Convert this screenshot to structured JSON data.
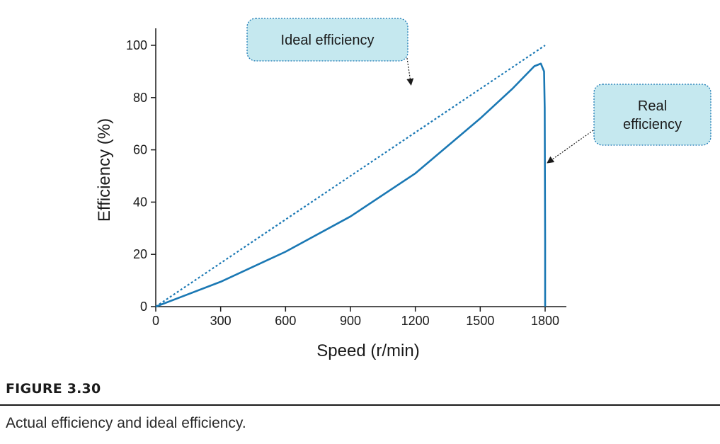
{
  "chart_data": {
    "type": "line",
    "title": "",
    "xlabel": "Speed (r/min)",
    "ylabel": "Efficiency (%)",
    "xlim": [
      0,
      1800
    ],
    "ylim": [
      0,
      100
    ],
    "xticks": [
      0,
      300,
      600,
      900,
      1200,
      1500,
      1800
    ],
    "yticks": [
      0,
      20,
      40,
      60,
      80,
      100
    ],
    "grid": false,
    "series": [
      {
        "name": "Ideal efficiency",
        "style": "dotted",
        "color": "#1a78b4",
        "x": [
          0,
          1800
        ],
        "y": [
          0,
          100
        ]
      },
      {
        "name": "Real efficiency",
        "style": "solid",
        "color": "#1a78b4",
        "x": [
          0,
          300,
          600,
          900,
          1200,
          1500,
          1650,
          1750,
          1780,
          1795,
          1798,
          1800,
          1800
        ],
        "y": [
          0,
          9.5,
          21,
          34.5,
          51,
          72,
          83.5,
          92,
          93,
          90,
          76,
          25,
          0
        ]
      }
    ],
    "annotations": [
      {
        "text_lines": [
          "Ideal efficiency"
        ],
        "target": "Ideal efficiency",
        "target_x": 1190,
        "target_y": 84
      },
      {
        "text_lines": [
          "Real",
          "efficiency"
        ],
        "target": "Real efficiency",
        "target_x": 1800,
        "target_y": 55
      }
    ]
  },
  "figure": {
    "label": "FIGURE 3.30",
    "caption": "Actual efficiency and ideal efficiency."
  },
  "colors": {
    "line": "#1a78b4",
    "callout_fill": "#c5e8ef",
    "callout_border": "#1a78b4",
    "arrow": "#1a1a1a"
  }
}
